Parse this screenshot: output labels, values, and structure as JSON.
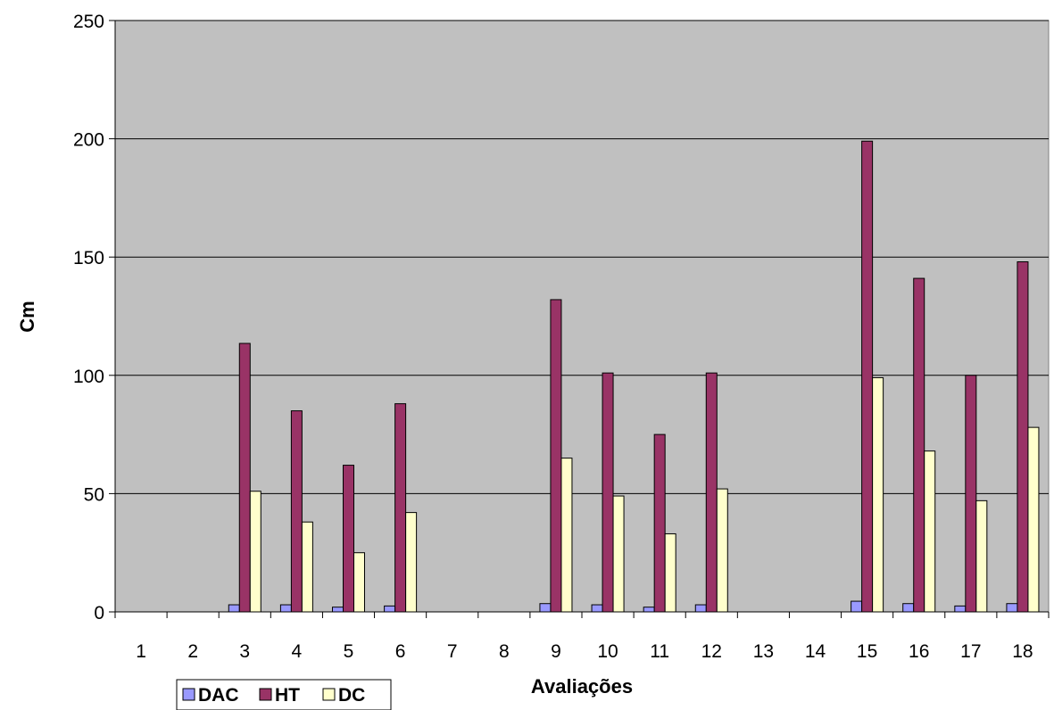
{
  "chart_data": {
    "type": "bar",
    "xlabel": "Avaliações",
    "ylabel": "Cm",
    "ylim": [
      0,
      250
    ],
    "yticks": [
      0,
      50,
      100,
      150,
      200,
      250
    ],
    "grid": true,
    "legend_position": "bottom-left",
    "plot_background": "#c0c0c0",
    "categories": [
      "1",
      "2",
      "3",
      "4",
      "5",
      "6",
      "7",
      "8",
      "9",
      "10",
      "11",
      "12",
      "13",
      "14",
      "15",
      "16",
      "17",
      "18"
    ],
    "series": [
      {
        "name": "DAC",
        "color": "#9999ff",
        "values": [
          null,
          null,
          3,
          3,
          2,
          2.5,
          null,
          null,
          3.5,
          3,
          2,
          3,
          null,
          null,
          4.5,
          3.5,
          2.5,
          3.5
        ]
      },
      {
        "name": "HT",
        "color": "#993366",
        "values": [
          null,
          null,
          113.5,
          85,
          62,
          88,
          null,
          null,
          132,
          101,
          75,
          101,
          null,
          null,
          199,
          141,
          100,
          148
        ]
      },
      {
        "name": "DC",
        "color": "#ffffcc",
        "values": [
          null,
          null,
          51,
          38,
          25,
          42,
          null,
          null,
          65,
          49,
          33,
          52,
          null,
          null,
          99,
          68,
          47,
          78
        ]
      }
    ]
  }
}
